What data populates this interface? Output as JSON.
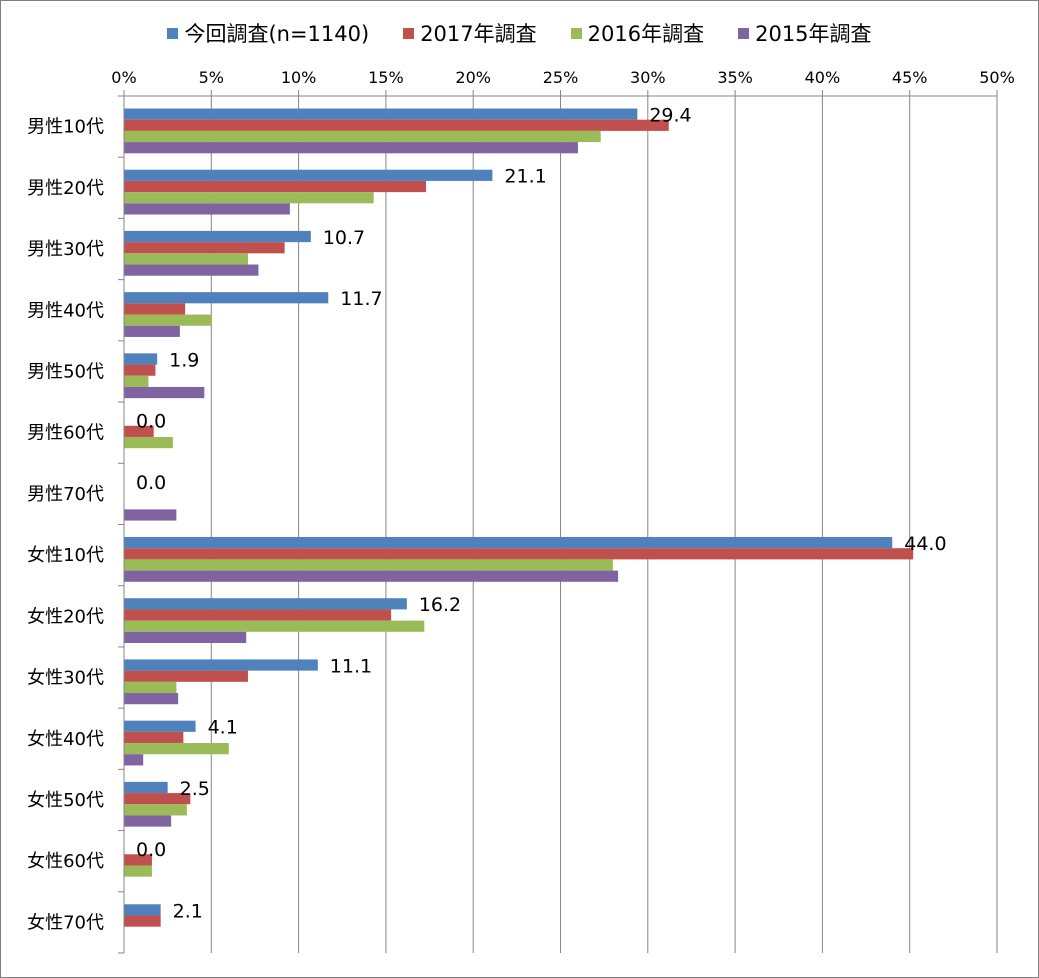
{
  "chart_data": {
    "type": "bar",
    "orientation": "horizontal",
    "categories": [
      "男性10代",
      "男性20代",
      "男性30代",
      "男性40代",
      "男性50代",
      "男性60代",
      "男性70代",
      "女性10代",
      "女性20代",
      "女性30代",
      "女性40代",
      "女性50代",
      "女性60代",
      "女性70代"
    ],
    "x_ticks": [
      "0%",
      "5%",
      "10%",
      "15%",
      "20%",
      "25%",
      "30%",
      "35%",
      "40%",
      "45%",
      "50%"
    ],
    "xlim": [
      0,
      50
    ],
    "grid": true,
    "legend_position": "top",
    "series": [
      {
        "name": "今回調査(n=1140)",
        "color": "#4f81bd",
        "values": [
          29.4,
          21.1,
          10.7,
          11.7,
          1.9,
          0.0,
          0.0,
          44.0,
          16.2,
          11.1,
          4.1,
          2.5,
          0.0,
          2.1
        ]
      },
      {
        "name": "2017年調査",
        "color": "#c0504d",
        "values": [
          31.2,
          17.3,
          9.2,
          3.5,
          1.8,
          1.7,
          0,
          45.2,
          15.3,
          7.1,
          3.4,
          3.8,
          1.6,
          2.1
        ]
      },
      {
        "name": "2016年調査",
        "color": "#9bbb59",
        "values": [
          27.3,
          14.3,
          7.1,
          5.0,
          1.4,
          2.8,
          0,
          28.0,
          17.2,
          3.0,
          6.0,
          3.6,
          1.6,
          0
        ]
      },
      {
        "name": "2015年調査",
        "color": "#8064a2",
        "values": [
          26.0,
          9.5,
          7.7,
          3.2,
          4.6,
          0,
          3.0,
          28.3,
          7.0,
          3.1,
          1.1,
          2.7,
          0,
          0
        ]
      }
    ],
    "data_labels": [
      "29.4",
      "21.1",
      "10.7",
      "11.7",
      "1.9",
      "0.0",
      "0.0",
      "44.0",
      "16.2",
      "11.1",
      "4.1",
      "2.5",
      "0.0",
      "2.1"
    ]
  }
}
